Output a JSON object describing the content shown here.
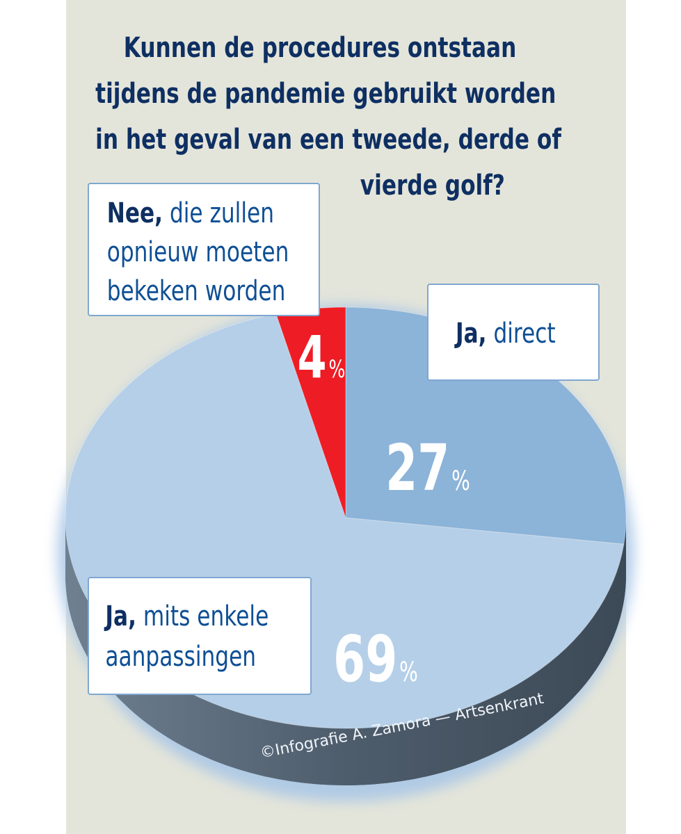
{
  "title_lines": [
    "Kunnen de procedures ontstaan",
    "tijdens de pandemie gebruikt worden",
    "in het geval van een tweede, derde of",
    "vierde golf?"
  ],
  "chart_data": {
    "type": "pie",
    "title": "Kunnen de procedures ontstaan tijdens de pandemie gebruikt worden in het geval van een tweede, derde of vierde golf?",
    "slices": [
      {
        "label": "Ja, direct",
        "value": 27,
        "color": "#8cb3d8"
      },
      {
        "label": "Ja, mits enkele aanpassingen",
        "value": 69,
        "color": "#b5cfe8"
      },
      {
        "label": "Nee, die zullen opnieuw moeten bekeken worden",
        "value": 4,
        "color": "#ee1c24"
      }
    ],
    "value_labels": [
      {
        "number": "27",
        "unit": "%"
      },
      {
        "number": "69",
        "unit": "%"
      },
      {
        "number": "4",
        "unit": "%"
      }
    ],
    "legend": "callouts"
  },
  "callouts": {
    "nee": {
      "bold": "Nee,",
      "rest1": " die zullen",
      "line2": "opnieuw moeten",
      "line3": "bekeken worden"
    },
    "direct": {
      "bold": "Ja,",
      "rest": " direct"
    },
    "mits": {
      "bold": "Ja,",
      "rest1": " mits enkele",
      "line2": "aanpassingen"
    }
  },
  "credit": "©Infografie A. Zamora — Artsenkrant",
  "colors": {
    "background_panel": "#e4e5da",
    "title": "#0e2f62",
    "label_text": "#0e4f94",
    "pie_side": "#4c5b6a"
  }
}
